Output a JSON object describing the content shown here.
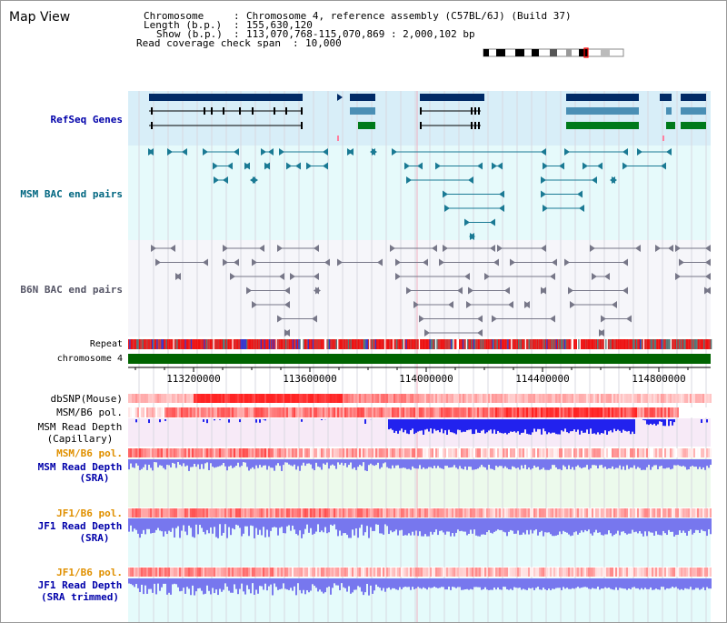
{
  "title": "Map View",
  "info": {
    "chromosome_label": "Chromosome",
    "chromosome_value": "Chromosome 4, reference assembly (C57BL/6J) (Build 37)",
    "length_label": "Length (b.p.)",
    "length_value": "155,630,120",
    "show_label": "Show (b.p.)",
    "show_value": "113,070,768-115,070,869 : 2,000,102 bp",
    "coverage_label": "Read coverage check span",
    "coverage_value": "10,000"
  },
  "tracks": {
    "refseq": "RefSeq Genes",
    "msm_bac": "MSM BAC end pairs",
    "b6n_bac": "B6N BAC end pairs",
    "repeat": "Repeat",
    "chromosome": "chromosome 4",
    "dbsnp": "dbSNP(Mouse)",
    "msm_b6_pol": "MSM/B6 pol.",
    "msm_depth_cap_1": "MSM Read Depth",
    "msm_depth_cap_2": "(Capillary)",
    "msm_b6_pol_2": "MSM/B6 pol.",
    "msm_depth_sra_1": "MSM Read Depth",
    "msm_depth_sra_2": "(SRA)",
    "jf1_b6_pol": "JF1/B6 pol.",
    "jf1_depth_sra_1": "JF1 Read Depth",
    "jf1_depth_sra_2": "(SRA)",
    "jf1_b6_pol_2": "JF1/B6 pol.",
    "jf1_depth_trim_1": "JF1 Read Depth",
    "jf1_depth_trim_2": "(SRA trimmed)"
  },
  "axis_ticks": [
    "113200000",
    "113600000",
    "114000000",
    "114400000",
    "114800000"
  ],
  "colors": {
    "refseq_dark": "#002a66",
    "refseq_light": "#4a8fb5",
    "refseq_green": "#007a1a",
    "msm_bac": "#1a7a94",
    "b6n_bac": "#777788",
    "chromosome": "#006400",
    "snp_red": "#ee2222",
    "depth_blue": "#2222ee",
    "depth_light": "#7777ee",
    "label_navy": "#0000aa",
    "label_orange": "#e09000"
  }
}
